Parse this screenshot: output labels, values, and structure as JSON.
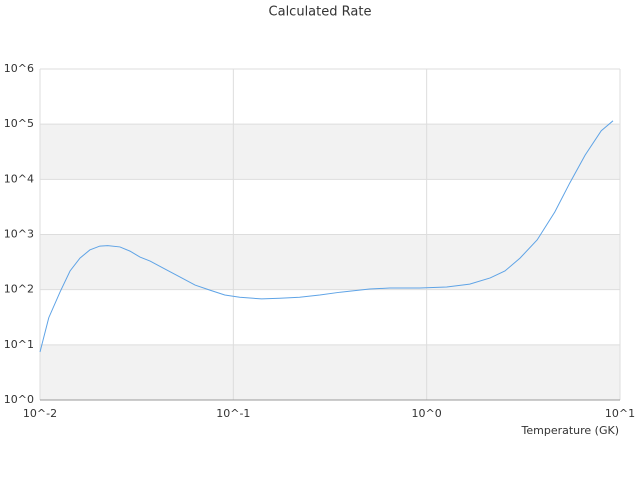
{
  "chart_data": {
    "type": "line",
    "title": "Calculated Rate",
    "x_label": "Temperature (GK)",
    "x_log": true,
    "y_log": true,
    "grid": true,
    "xlim": [
      0.01,
      10
    ],
    "ylim": [
      1,
      1000000
    ],
    "xticks": [
      {
        "value": 0.01,
        "label": "10^-2"
      },
      {
        "value": 0.1,
        "label": "10^-1"
      },
      {
        "value": 1,
        "label": "10^0"
      },
      {
        "value": 10,
        "label": "10^1"
      }
    ],
    "yticks": [
      {
        "value": 1,
        "label": "10^0"
      },
      {
        "value": 10,
        "label": "10^1"
      },
      {
        "value": 100,
        "label": "10^2"
      },
      {
        "value": 1000,
        "label": "10^3"
      },
      {
        "value": 10000,
        "label": "10^4"
      },
      {
        "value": 100000,
        "label": "10^5"
      },
      {
        "value": 1000000,
        "label": "10^6"
      }
    ],
    "x": [
      0.01,
      0.0111,
      0.0127,
      0.0143,
      0.0161,
      0.0181,
      0.0204,
      0.0224,
      0.0259,
      0.0292,
      0.0329,
      0.0371,
      0.0442,
      0.0529,
      0.0634,
      0.0756,
      0.0903,
      0.108,
      0.14,
      0.174,
      0.22,
      0.28,
      0.357,
      0.507,
      0.644,
      0.92,
      1.27,
      1.67,
      2.13,
      2.54,
      3.04,
      3.73,
      4.6,
      5.5,
      6.6,
      8,
      9.2
    ],
    "series": [
      {
        "color": "#5ea3e6",
        "values": [
          7.4,
          31,
          91,
          218,
          373,
          525,
          617,
          630,
          595,
          500,
          390,
          330,
          237,
          170,
          121,
          98,
          80,
          73,
          68,
          70,
          73,
          80,
          90,
          103,
          107,
          107,
          112,
          126,
          163,
          218,
          373,
          800,
          2560,
          8600,
          27500,
          76000,
          115000
        ]
      }
    ]
  }
}
